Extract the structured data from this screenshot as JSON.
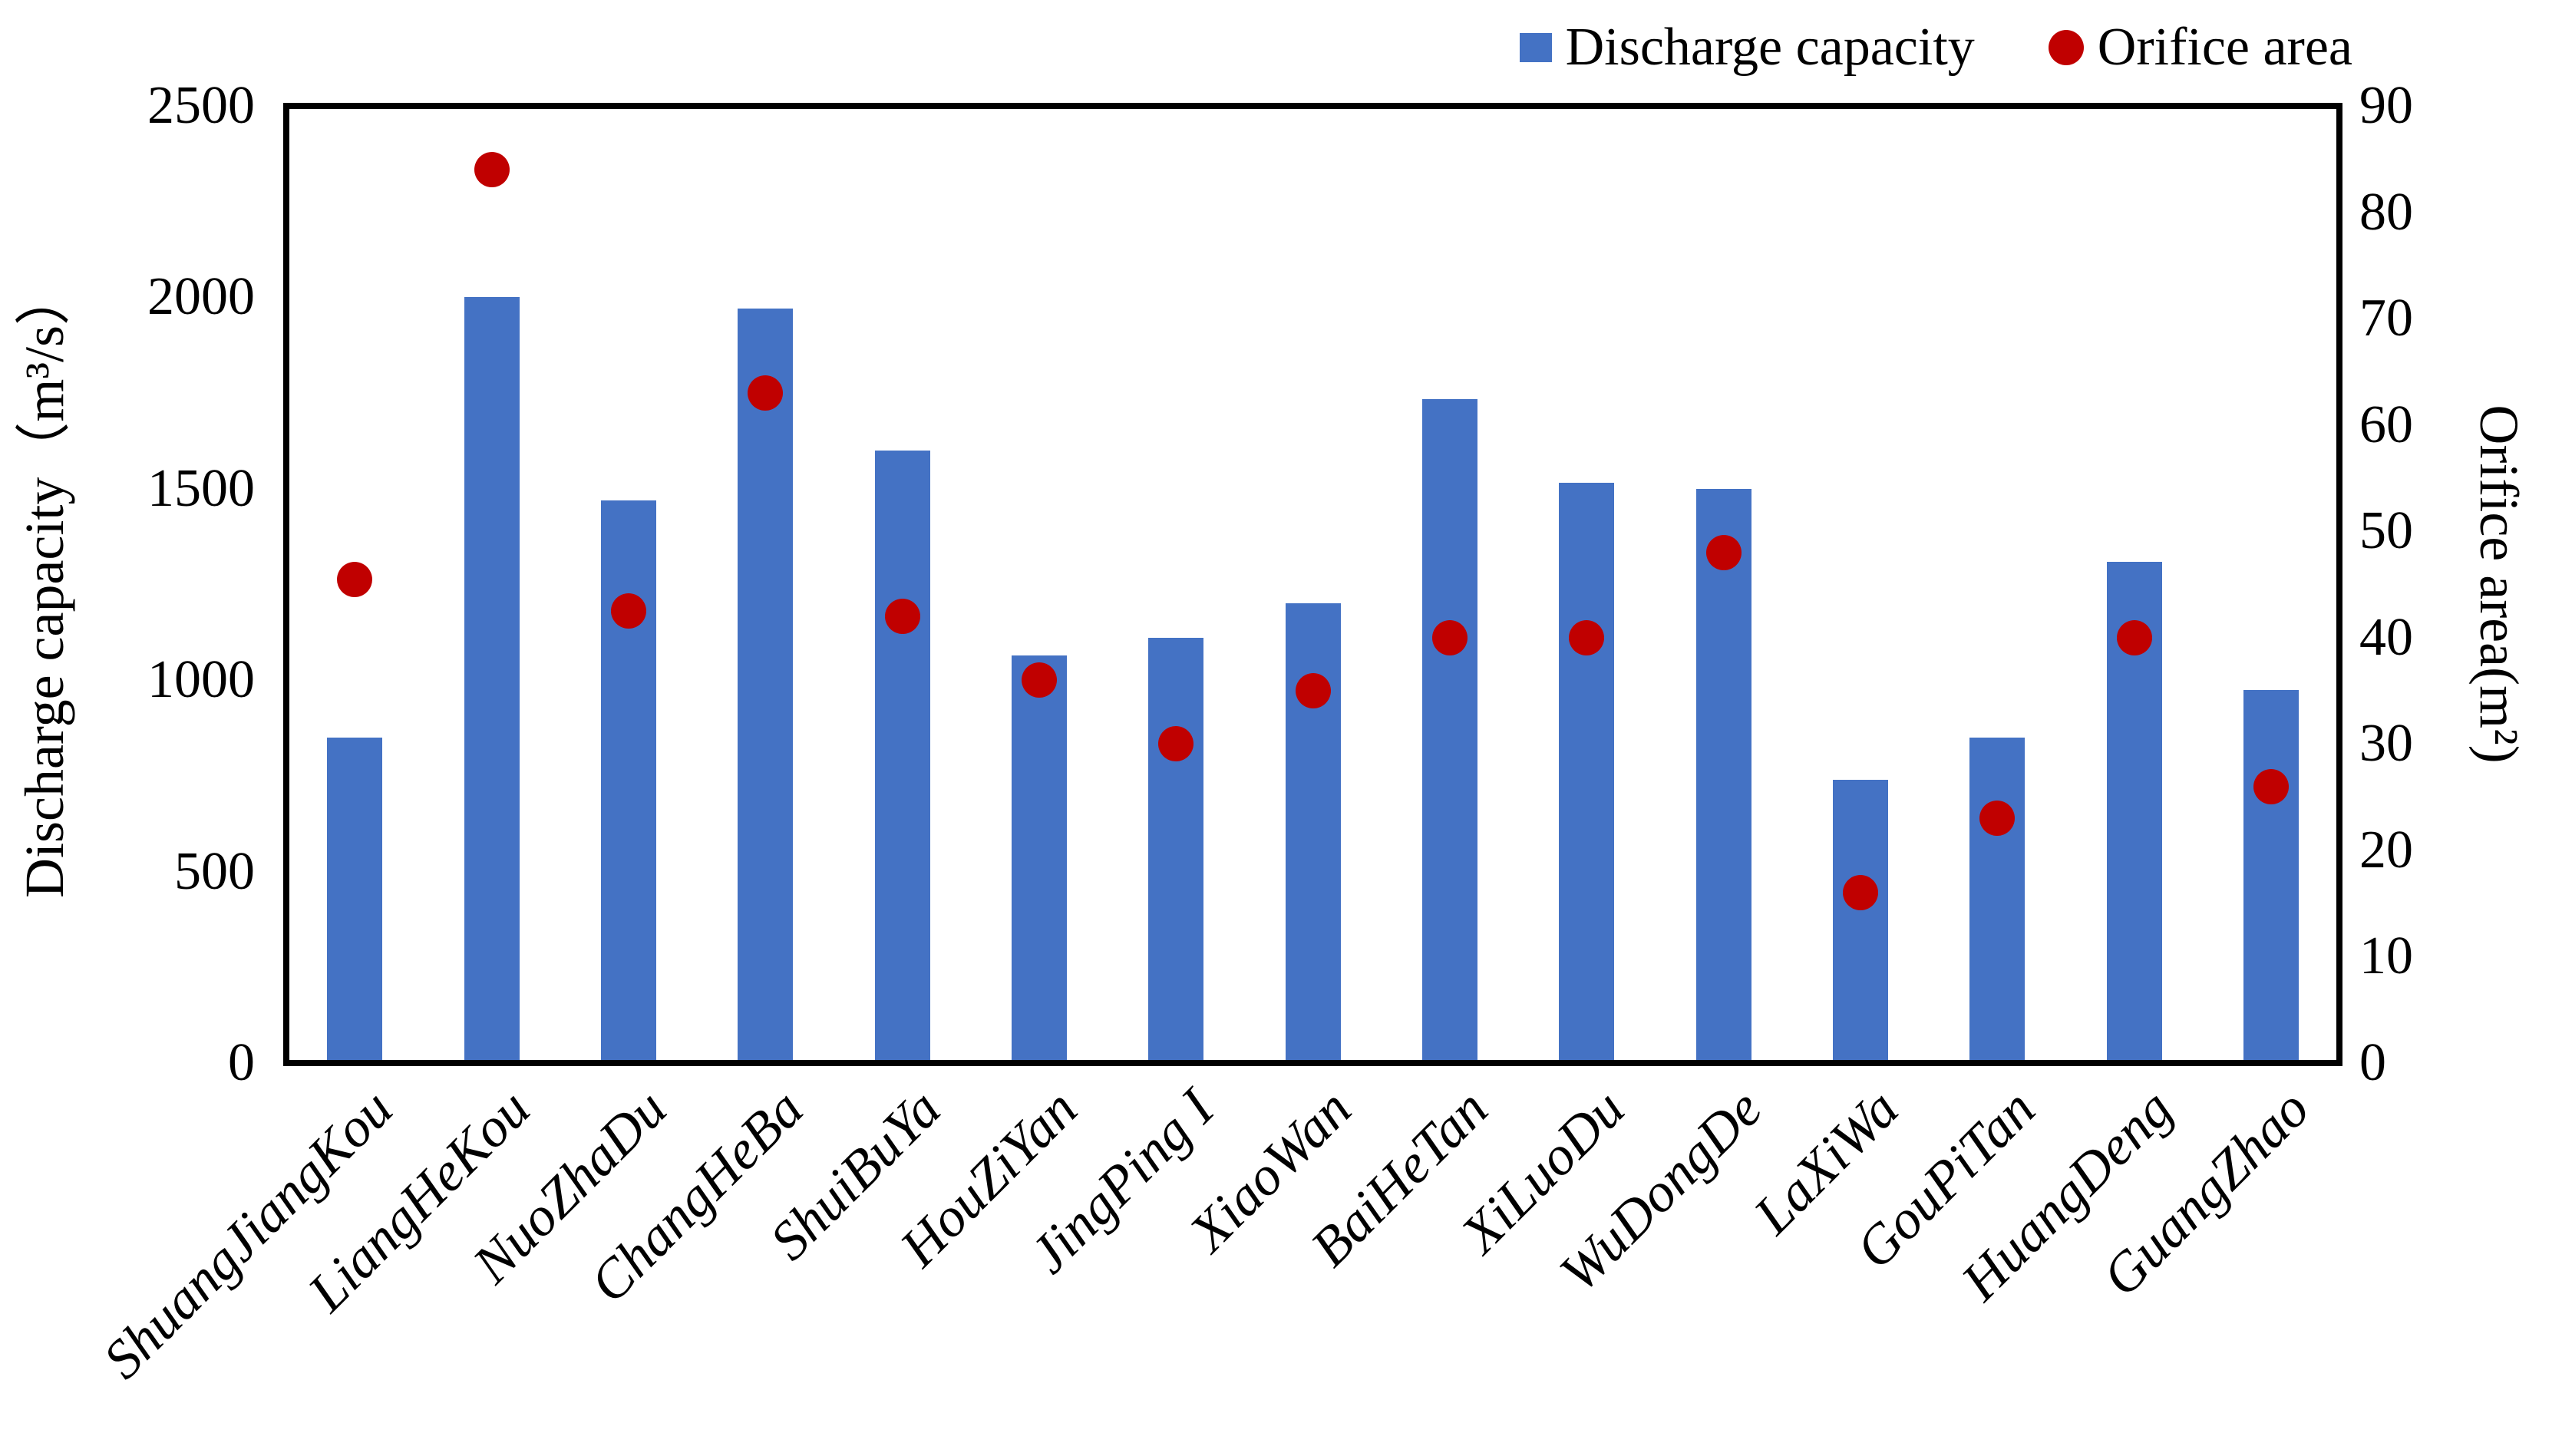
{
  "chart_data": {
    "type": "combo",
    "title": "",
    "categories": [
      "ShuangJiangKou",
      "LiangHeKou",
      "NuoZhaDu",
      "ChangHeBa",
      "ShuiBuYa",
      "HouZiYan",
      "JingPing I",
      "XiaoWan",
      "BaiHeTan",
      "XiLuoDu",
      "WuDongDe",
      "LaXiWa",
      "GouPiTan",
      "HuangDeng",
      "GuangZhao"
    ],
    "series": [
      {
        "name": "Discharge capacity",
        "type": "bar",
        "axis": "left",
        "color": "#4472C4",
        "values": [
          850,
          2000,
          1470,
          1970,
          1600,
          1065,
          1110,
          1200,
          1735,
          1515,
          1500,
          740,
          850,
          1310,
          975
        ]
      },
      {
        "name": "Orifice area",
        "type": "scatter",
        "axis": "right",
        "color": "#C00000",
        "values": [
          45.5,
          84,
          42.5,
          63,
          42,
          36,
          30,
          35,
          40,
          40,
          48,
          16,
          23,
          40,
          26
        ]
      }
    ],
    "left_axis": {
      "label": "Discharge capacity（m³/s）",
      "min": 0,
      "max": 2500,
      "step": 500,
      "ticks": [
        "0",
        "500",
        "1000",
        "1500",
        "2000",
        "2500"
      ]
    },
    "right_axis": {
      "label": "Orifice area(m²)",
      "min": 0,
      "max": 90,
      "step": 10,
      "ticks": [
        "0",
        "10",
        "20",
        "30",
        "40",
        "50",
        "60",
        "70",
        "80",
        "90"
      ]
    },
    "legend_position": "top-right",
    "grid": false,
    "colors": {
      "bar": "#4472C4",
      "dot": "#C00000",
      "axis": "#000000",
      "background": "#FFFFFF"
    }
  }
}
